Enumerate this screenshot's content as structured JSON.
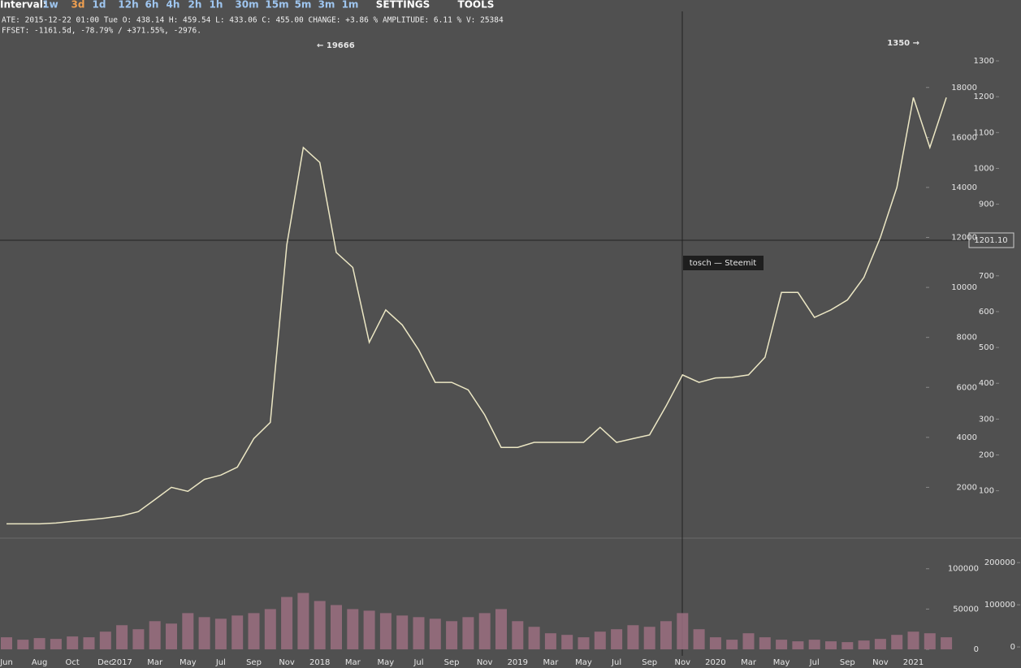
{
  "toolbar": {
    "label": "Interval:",
    "intervals": [
      "1w",
      "3d",
      "1d",
      "12h",
      "6h",
      "4h",
      "2h",
      "1h",
      "30m",
      "15m",
      "5m",
      "3m",
      "1m"
    ],
    "active": "3d",
    "menus": [
      "SETTINGS",
      "TOOLS"
    ]
  },
  "info": {
    "lines": [
      "ATE: 2015-12-22 01:00 Tue   O: 438.14   H: 459.54   L: 433.06   C: 455.00   CHANGE: +3.86 %   AMPLITUDE: 6.11 %   V: 25384",
      "FFSET: -1161.5d, -78.79% / +371.55%, -2976."
    ]
  },
  "crosshair_label": "1201.10",
  "tooltip": "tosch — Steemit",
  "chart_data": [
    {
      "type": "line",
      "color": "#ece7c4",
      "values": [
        540,
        540,
        540,
        570,
        640,
        700,
        770,
        860,
        1030,
        1510,
        2000,
        1840,
        2320,
        2490,
        2810,
        3950,
        4600,
        11700,
        15600,
        15000,
        11400,
        10800,
        7800,
        9100,
        8500,
        7500,
        6200,
        6200,
        5900,
        4900,
        3600,
        3600,
        3800,
        3800,
        3800,
        3800,
        4400,
        3800,
        3950,
        4100,
        5250,
        6500,
        6200,
        6380,
        6400,
        6500,
        7200,
        9800,
        9800,
        8800,
        9100,
        9500,
        10400,
        12000,
        14000,
        17600,
        15600,
        17600
      ],
      "ylim": [
        0,
        21500
      ],
      "yticks": [
        2000,
        4000,
        6000,
        8000,
        10000,
        12000,
        14000,
        16000,
        18000
      ],
      "y2lim": [
        -30,
        1470
      ],
      "y2ticks": [
        100,
        200,
        300,
        400,
        500,
        600,
        700,
        900,
        1000,
        1100,
        1200,
        1300
      ],
      "annotations": [
        "← 19666",
        "1350 →"
      ]
    },
    {
      "type": "bar",
      "color": "#9b6f80",
      "categories": [
        "Jun",
        null,
        "Aug",
        null,
        "Oct",
        null,
        "Dec",
        "2017",
        null,
        "Mar",
        null,
        "May",
        null,
        "Jul",
        null,
        "Sep",
        null,
        "Nov",
        null,
        "2018",
        null,
        "Mar",
        null,
        "May",
        null,
        "Jul",
        null,
        "Sep",
        null,
        "Nov",
        null,
        "2019",
        null,
        "Mar",
        null,
        "May",
        null,
        "Jul",
        null,
        "Sep",
        null,
        "Nov",
        null,
        "2020",
        null,
        "Mar",
        null,
        "May",
        null,
        "Jul",
        null,
        "Sep",
        null,
        "Nov",
        null,
        "2021",
        null,
        null
      ],
      "values": [
        15000,
        12000,
        14000,
        13000,
        16000,
        15000,
        22000,
        30000,
        25000,
        35000,
        32000,
        45000,
        40000,
        38000,
        42000,
        45000,
        50000,
        65000,
        70000,
        60000,
        55000,
        50000,
        48000,
        45000,
        42000,
        40000,
        38000,
        35000,
        40000,
        45000,
        50000,
        35000,
        28000,
        20000,
        18000,
        15000,
        22000,
        25000,
        30000,
        28000,
        35000,
        45000,
        25000,
        15000,
        12000,
        20000,
        15000,
        12000,
        10000,
        12000,
        10000,
        9000,
        11000,
        13000,
        18000,
        22000,
        20000,
        15000
      ],
      "ylim": [
        -8000,
        138000
      ],
      "yticks": [
        0,
        50000,
        100000
      ],
      "y2lim": [
        -21000,
        258000
      ],
      "y2ticks": [
        0,
        100000,
        200000
      ]
    }
  ]
}
